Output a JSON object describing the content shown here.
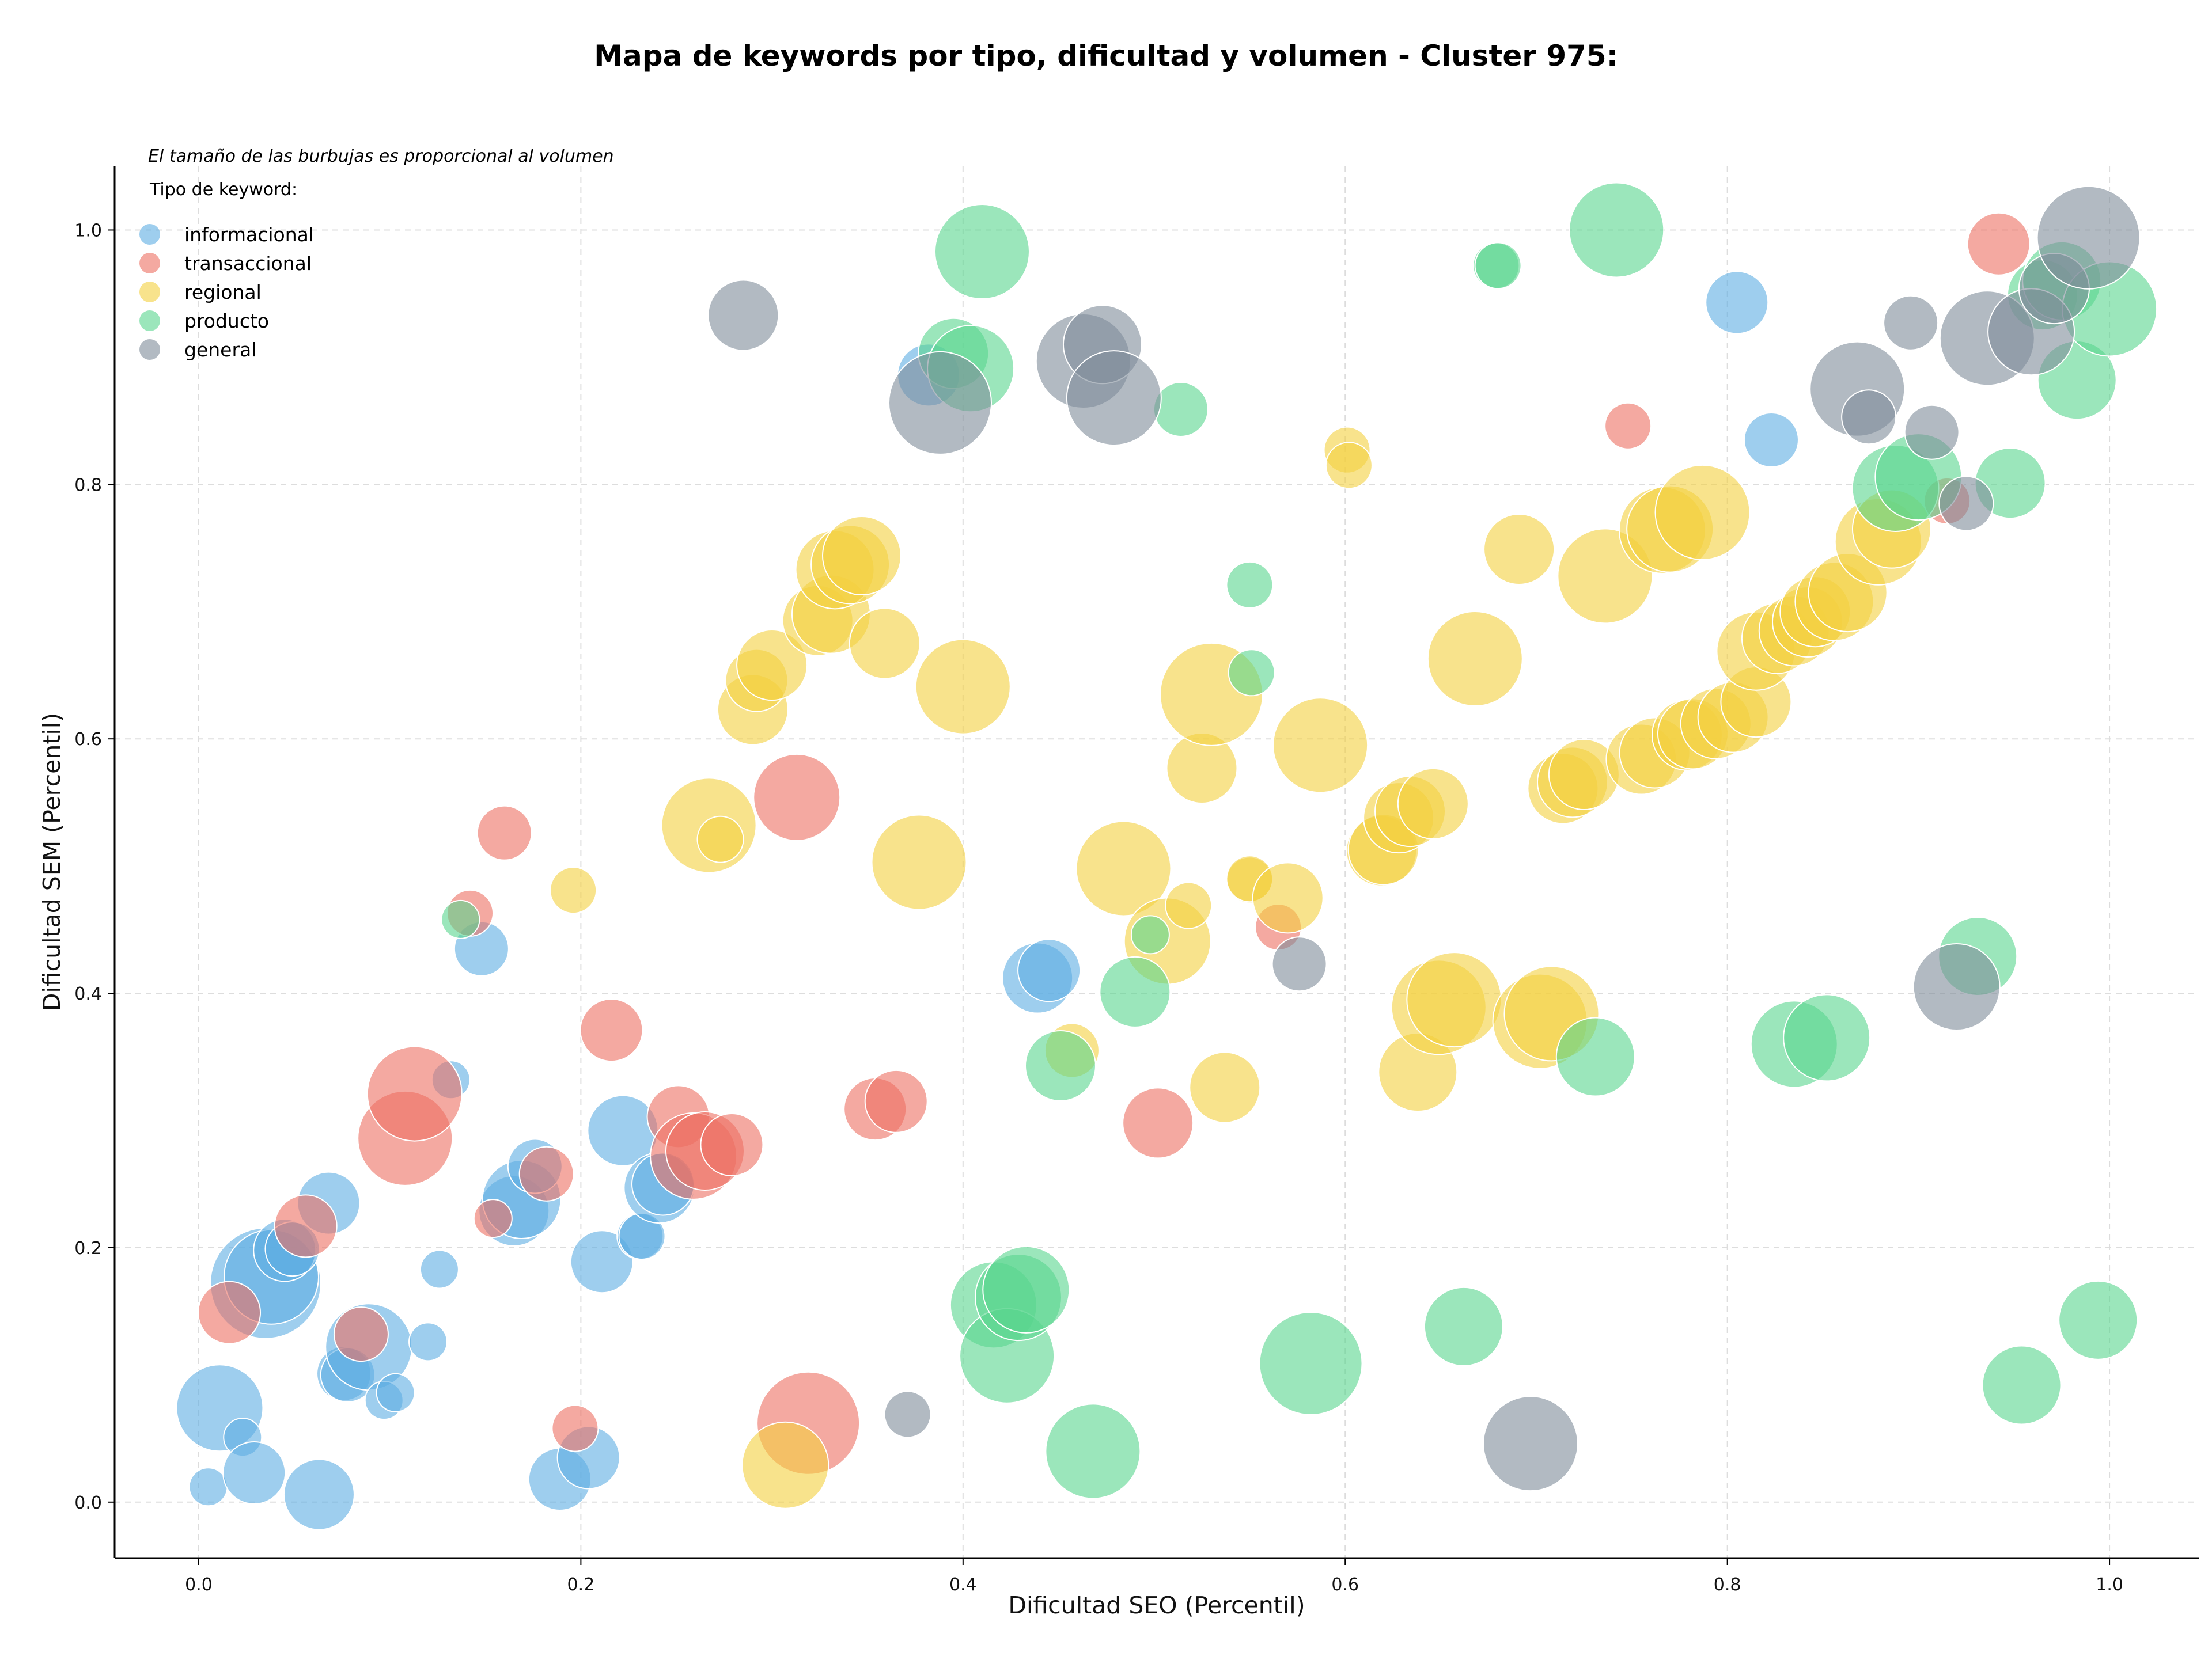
{
  "chart_data": {
    "type": "scatter",
    "title": "Mapa de keywords por tipo, dificultad y volumen - Cluster 975:",
    "xlabel": "Dificultad SEO (Percentil)",
    "ylabel": "Dificultad SEM (Percentil)",
    "xlim": [
      -0.044,
      1.047
    ],
    "ylim": [
      -0.044,
      1.05
    ],
    "xticks": [
      "0.0",
      "0.2",
      "0.4",
      "0.6",
      "0.8",
      "1.0"
    ],
    "yticks": [
      "0.0",
      "0.2",
      "0.4",
      "0.6",
      "0.8",
      "1.0"
    ],
    "grid": true,
    "legend_position": "top-left",
    "legend_note": "El tamaño de las burbujas es proporcional al volumen",
    "legend_title": "Tipo de keyword:",
    "series": [
      {
        "name": "informacional",
        "color": "#5dade2",
        "points": [
          [
            0.005,
            0.012,
            3
          ],
          [
            0.011,
            0.074,
            9
          ],
          [
            0.023,
            0.051,
            3
          ],
          [
            0.029,
            0.023,
            6
          ],
          [
            0.035,
            0.172,
            12
          ],
          [
            0.038,
            0.177,
            10
          ],
          [
            0.045,
            0.198,
            6
          ],
          [
            0.049,
            0.199,
            5
          ],
          [
            0.063,
            0.006,
            7
          ],
          [
            0.068,
            0.235,
            6
          ],
          [
            0.076,
            0.101,
            5
          ],
          [
            0.078,
            0.1,
            5
          ],
          [
            0.089,
            0.122,
            9
          ],
          [
            0.097,
            0.08,
            3
          ],
          [
            0.103,
            0.086,
            3
          ],
          [
            0.12,
            0.126,
            3
          ],
          [
            0.126,
            0.183,
            3
          ],
          [
            0.132,
            0.332,
            3
          ],
          [
            0.148,
            0.435,
            5
          ],
          [
            0.165,
            0.229,
            7
          ],
          [
            0.169,
            0.238,
            8
          ],
          [
            0.176,
            0.264,
            5
          ],
          [
            0.189,
            0.018,
            6
          ],
          [
            0.204,
            0.035,
            6
          ],
          [
            0.211,
            0.189,
            6
          ],
          [
            0.222,
            0.292,
            7
          ],
          [
            0.231,
            0.209,
            4
          ],
          [
            0.232,
            0.209,
            4
          ],
          [
            0.241,
            0.247,
            7
          ],
          [
            0.243,
            0.25,
            6
          ],
          [
            0.382,
            0.886,
            6
          ],
          [
            0.439,
            0.412,
            7
          ],
          [
            0.445,
            0.418,
            6
          ],
          [
            0.805,
            0.943,
            6
          ],
          [
            0.823,
            0.835,
            5
          ]
        ]
      },
      {
        "name": "transaccional",
        "color": "#ec7063",
        "points": [
          [
            0.016,
            0.149,
            6
          ],
          [
            0.056,
            0.217,
            6
          ],
          [
            0.085,
            0.132,
            5
          ],
          [
            0.108,
            0.286,
            10
          ],
          [
            0.113,
            0.321,
            10
          ],
          [
            0.142,
            0.463,
            4
          ],
          [
            0.154,
            0.223,
            3
          ],
          [
            0.16,
            0.526,
            5
          ],
          [
            0.182,
            0.258,
            5
          ],
          [
            0.197,
            0.058,
            4
          ],
          [
            0.216,
            0.371,
            6
          ],
          [
            0.251,
            0.303,
            6
          ],
          [
            0.259,
            0.272,
            9
          ],
          [
            0.265,
            0.276,
            8
          ],
          [
            0.279,
            0.281,
            6
          ],
          [
            0.313,
            0.554,
            9
          ],
          [
            0.319,
            0.062,
            11
          ],
          [
            0.354,
            0.309,
            6
          ],
          [
            0.365,
            0.315,
            6
          ],
          [
            0.502,
            0.298,
            7
          ],
          [
            0.565,
            0.452,
            4
          ],
          [
            0.748,
            0.846,
            4
          ],
          [
            0.915,
            0.787,
            4
          ],
          [
            0.942,
            0.989,
            6
          ]
        ]
      },
      {
        "name": "regional",
        "color": "#f4d03f",
        "points": [
          [
            0.196,
            0.481,
            4
          ],
          [
            0.267,
            0.532,
            10
          ],
          [
            0.273,
            0.521,
            4
          ],
          [
            0.29,
            0.623,
            7
          ],
          [
            0.292,
            0.646,
            6
          ],
          [
            0.3,
            0.658,
            7
          ],
          [
            0.307,
            0.029,
            9
          ],
          [
            0.324,
            0.693,
            7
          ],
          [
            0.331,
            0.698,
            8
          ],
          [
            0.333,
            0.733,
            8
          ],
          [
            0.341,
            0.737,
            8
          ],
          [
            0.347,
            0.744,
            8
          ],
          [
            0.359,
            0.675,
            7
          ],
          [
            0.377,
            0.503,
            10
          ],
          [
            0.4,
            0.641,
            10
          ],
          [
            0.457,
            0.355,
            5
          ],
          [
            0.484,
            0.498,
            10
          ],
          [
            0.507,
            0.441,
            9
          ],
          [
            0.518,
            0.469,
            4
          ],
          [
            0.525,
            0.577,
            7
          ],
          [
            0.53,
            0.635,
            11
          ],
          [
            0.537,
            0.326,
            7
          ],
          [
            0.55,
            0.489,
            4
          ],
          [
            0.55,
            0.49,
            4
          ],
          [
            0.57,
            0.475,
            7
          ],
          [
            0.587,
            0.595,
            10
          ],
          [
            0.601,
            0.827,
            4
          ],
          [
            0.602,
            0.815,
            4
          ],
          [
            0.619,
            0.512,
            7
          ],
          [
            0.62,
            0.513,
            7
          ],
          [
            0.628,
            0.538,
            7
          ],
          [
            0.634,
            0.543,
            7
          ],
          [
            0.638,
            0.338,
            8
          ],
          [
            0.646,
            0.549,
            7
          ],
          [
            0.649,
            0.389,
            10
          ],
          [
            0.657,
            0.395,
            10
          ],
          [
            0.668,
            0.663,
            10
          ],
          [
            0.691,
            0.749,
            7
          ],
          [
            0.702,
            0.378,
            10
          ],
          [
            0.708,
            0.384,
            10
          ],
          [
            0.714,
            0.561,
            7
          ],
          [
            0.719,
            0.566,
            7
          ],
          [
            0.725,
            0.572,
            7
          ],
          [
            0.736,
            0.728,
            10
          ],
          [
            0.755,
            0.584,
            7
          ],
          [
            0.762,
            0.589,
            7
          ],
          [
            0.766,
            0.764,
            9
          ],
          [
            0.77,
            0.765,
            9
          ],
          [
            0.779,
            0.603,
            7
          ],
          [
            0.782,
            0.604,
            7
          ],
          [
            0.787,
            0.778,
            10
          ],
          [
            0.794,
            0.612,
            7
          ],
          [
            0.803,
            0.617,
            7
          ],
          [
            0.815,
            0.629,
            7
          ],
          [
            0.815,
            0.669,
            8
          ],
          [
            0.826,
            0.679,
            7
          ],
          [
            0.835,
            0.685,
            7
          ],
          [
            0.842,
            0.692,
            7
          ],
          [
            0.846,
            0.7,
            7
          ],
          [
            0.856,
            0.708,
            8
          ],
          [
            0.863,
            0.715,
            8
          ],
          [
            0.879,
            0.755,
            9
          ],
          [
            0.886,
            0.765,
            8
          ]
        ]
      },
      {
        "name": "producto",
        "color": "#58d68d",
        "points": [
          [
            0.137,
            0.458,
            3
          ],
          [
            0.395,
            0.903,
            7
          ],
          [
            0.404,
            0.891,
            9
          ],
          [
            0.41,
            0.983,
            10
          ],
          [
            0.416,
            0.155,
            9
          ],
          [
            0.423,
            0.115,
            10
          ],
          [
            0.429,
            0.161,
            9
          ],
          [
            0.433,
            0.167,
            9
          ],
          [
            0.451,
            0.343,
            7
          ],
          [
            0.468,
            0.04,
            10
          ],
          [
            0.49,
            0.401,
            7
          ],
          [
            0.498,
            0.446,
            3
          ],
          [
            0.514,
            0.859,
            5
          ],
          [
            0.55,
            0.721,
            4
          ],
          [
            0.551,
            0.652,
            4
          ],
          [
            0.582,
            0.109,
            11
          ],
          [
            0.662,
            0.138,
            8
          ],
          [
            0.679,
            0.972,
            4
          ],
          [
            0.68,
            0.972,
            4
          ],
          [
            0.742,
            1.0,
            10
          ],
          [
            0.731,
            0.35,
            8
          ],
          [
            0.835,
            0.36,
            9
          ],
          [
            0.852,
            0.365,
            9
          ],
          [
            0.888,
            0.797,
            9
          ],
          [
            0.9,
            0.806,
            9
          ],
          [
            0.931,
            0.429,
            8
          ],
          [
            0.948,
            0.801,
            7
          ],
          [
            0.954,
            0.092,
            8
          ],
          [
            0.965,
            0.949,
            7
          ],
          [
            0.975,
            0.96,
            8
          ],
          [
            0.983,
            0.882,
            8
          ],
          [
            0.994,
            0.143,
            8
          ],
          [
            1.0,
            0.938,
            10
          ]
        ]
      },
      {
        "name": "general",
        "color": "#7f8c9a",
        "points": [
          [
            0.285,
            0.933,
            7
          ],
          [
            0.371,
            0.069,
            4
          ],
          [
            0.388,
            0.864,
            11
          ],
          [
            0.463,
            0.897,
            10
          ],
          [
            0.473,
            0.91,
            8
          ],
          [
            0.479,
            0.868,
            10
          ],
          [
            0.576,
            0.423,
            5
          ],
          [
            0.697,
            0.046,
            10
          ],
          [
            0.868,
            0.875,
            10
          ],
          [
            0.874,
            0.853,
            5
          ],
          [
            0.896,
            0.927,
            5
          ],
          [
            0.907,
            0.841,
            5
          ],
          [
            0.92,
            0.405,
            9
          ],
          [
            0.925,
            0.785,
            5
          ],
          [
            0.936,
            0.915,
            10
          ],
          [
            0.959,
            0.92,
            9
          ],
          [
            0.971,
            0.954,
            7
          ],
          [
            0.989,
            0.994,
            11
          ]
        ]
      }
    ]
  }
}
